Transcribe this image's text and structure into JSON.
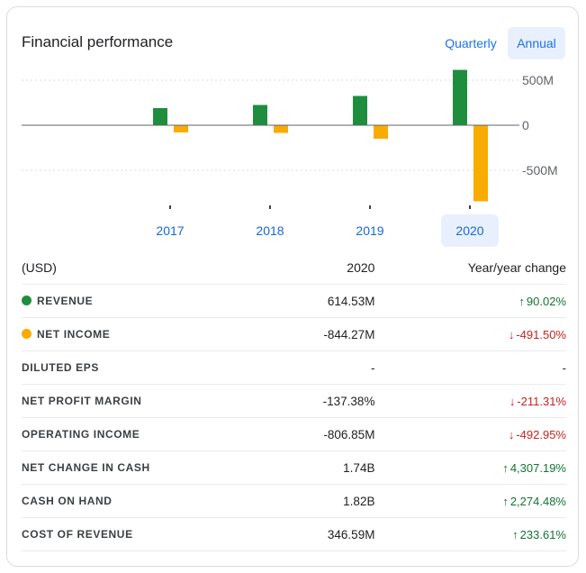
{
  "header": {
    "title": "Financial performance",
    "quarterly_label": "Quarterly",
    "annual_label": "Annual"
  },
  "chart_data": {
    "type": "bar",
    "categories": [
      "2017",
      "2018",
      "2019",
      "2020"
    ],
    "series": [
      {
        "name": "Revenue",
        "color": "#1e8e3e",
        "values": [
          190,
          225,
          325,
          614.53
        ]
      },
      {
        "name": "Net income",
        "color": "#f9ab00",
        "values": [
          -80,
          -85,
          -150,
          -844.27
        ]
      }
    ],
    "ylim": [
      -900,
      650
    ],
    "yticks": [
      {
        "value": 500,
        "label": "500M"
      },
      {
        "value": 0,
        "label": "0"
      },
      {
        "value": -500,
        "label": "-500M"
      }
    ],
    "selected_category": "2020",
    "grid": true,
    "xlabel": "",
    "ylabel": ""
  },
  "table": {
    "headers": {
      "label": "(USD)",
      "year": "2020",
      "change": "Year/year change"
    },
    "rows": [
      {
        "label": "REVENUE",
        "dot": "#1e8e3e",
        "value": "614.53M",
        "change": "90.02%",
        "dir": "up"
      },
      {
        "label": "NET INCOME",
        "dot": "#f9ab00",
        "value": "-844.27M",
        "change": "-491.50%",
        "dir": "down"
      },
      {
        "label": "DILUTED EPS",
        "value": "-",
        "change": "-",
        "dir": "none"
      },
      {
        "label": "NET PROFIT MARGIN",
        "value": "-137.38%",
        "change": "-211.31%",
        "dir": "down"
      },
      {
        "label": "OPERATING INCOME",
        "value": "-806.85M",
        "change": "-492.95%",
        "dir": "down"
      },
      {
        "label": "NET CHANGE IN CASH",
        "value": "1.74B",
        "change": "4,307.19%",
        "dir": "up"
      },
      {
        "label": "CASH ON HAND",
        "value": "1.82B",
        "change": "2,274.48%",
        "dir": "up"
      },
      {
        "label": "COST OF REVENUE",
        "value": "346.59M",
        "change": "233.61%",
        "dir": "up"
      }
    ]
  },
  "colors": {
    "accent": "#1a73e8",
    "positive": "#137333",
    "negative": "#c5221f"
  }
}
